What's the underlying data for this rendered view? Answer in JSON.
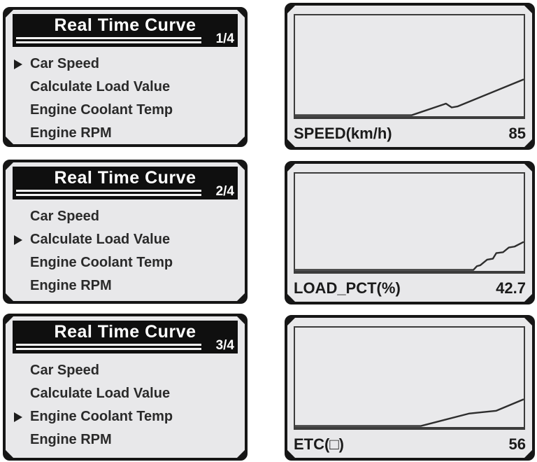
{
  "colors": {
    "page_bg": "#ffffff",
    "panel_bg": "#e8e8ea",
    "panel_border": "#161616",
    "titlebar_bg": "#0f0f0f",
    "titlebar_text": "#ffffff",
    "menu_text": "#2a2a2a",
    "curve": "#2e2e2e"
  },
  "menus": [
    {
      "title": "Real Time Curve",
      "page_indicator": "1/4",
      "items": [
        "Car Speed",
        "Calculate Load Value",
        "Engine Coolant Temp",
        "Engine RPM"
      ],
      "selected_index": 0
    },
    {
      "title": "Real Time Curve",
      "page_indicator": "2/4",
      "items": [
        "Car Speed",
        "Calculate Load Value",
        "Engine Coolant Temp",
        "Engine RPM"
      ],
      "selected_index": 1
    },
    {
      "title": "Real Time Curve",
      "page_indicator": "3/4",
      "items": [
        "Car Speed",
        "Calculate Load Value",
        "Engine Coolant Temp",
        "Engine RPM"
      ],
      "selected_index": 2
    }
  ],
  "chart_data": [
    {
      "type": "line",
      "label": "SPEED(km/h)",
      "value": "85",
      "x_range": [
        0,
        100
      ],
      "y_range": [
        0,
        100
      ],
      "grid": false,
      "points": [
        [
          0,
          0
        ],
        [
          51,
          0
        ],
        [
          66,
          12
        ],
        [
          68.5,
          8
        ],
        [
          71,
          9
        ],
        [
          100,
          37
        ]
      ]
    },
    {
      "type": "line",
      "label": "LOAD_PCT(%)",
      "value": "42.7",
      "x_range": [
        0,
        100
      ],
      "y_range": [
        0,
        100
      ],
      "grid": false,
      "points": [
        [
          0,
          0
        ],
        [
          78,
          0
        ],
        [
          79.5,
          4
        ],
        [
          81,
          5
        ],
        [
          82.5,
          8
        ],
        [
          84,
          11
        ],
        [
          86.5,
          12
        ],
        [
          88,
          18
        ],
        [
          91,
          19
        ],
        [
          93.5,
          24
        ],
        [
          96,
          25
        ],
        [
          100,
          30
        ]
      ]
    },
    {
      "type": "line",
      "label": "ETC(□)",
      "value": "56",
      "x_range": [
        0,
        100
      ],
      "y_range": [
        0,
        100
      ],
      "grid": false,
      "points": [
        [
          0,
          0
        ],
        [
          55,
          0
        ],
        [
          76,
          13
        ],
        [
          88,
          16
        ],
        [
          100,
          28
        ]
      ]
    }
  ]
}
